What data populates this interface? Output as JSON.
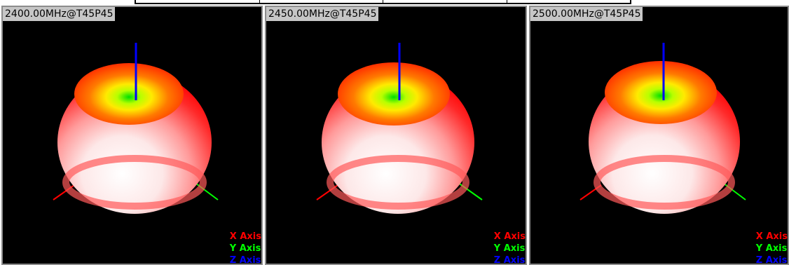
{
  "panels": [
    {
      "title": "2400.00MHz@T45P45"
    },
    {
      "title": "2450.00MHz@T45P45"
    },
    {
      "title": "2500.00MHz@T45P45"
    }
  ],
  "legend": {
    "x_label": "X Axis",
    "y_label": "Y Axis",
    "z_label": "Z Axis"
  },
  "colors": {
    "background": "#000000",
    "x_axis": "#ff0000",
    "y_axis": "#00ff00",
    "z_axis": "#0000ff",
    "title_bg": "#c6c6c6"
  }
}
